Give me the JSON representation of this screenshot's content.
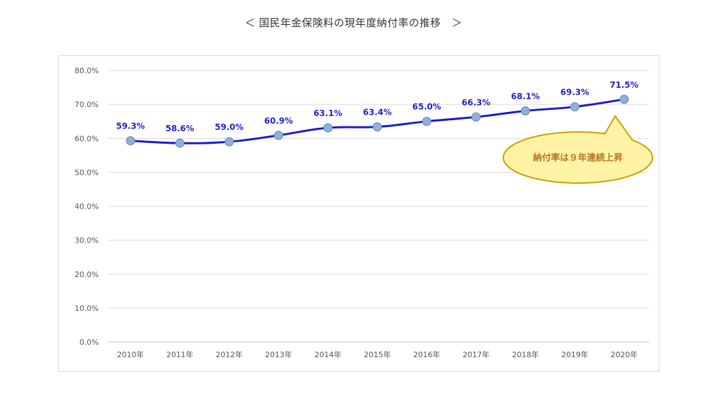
{
  "title": "＜ 国民年金保険料の現年度納付率の推移　＞",
  "callout": {
    "text": "納付率は９年連続上昇"
  },
  "colors": {
    "line": "#1a1acc",
    "marker_fill": "#8fb0d8",
    "marker_stroke": "#6a8fc0",
    "data_label": "#2424c8",
    "grid": "#d9d9d9",
    "axis": "#bfbfbf",
    "callout_fill": "#fff3a6",
    "callout_stroke": "#c9a100",
    "callout_text": "#b7791f"
  },
  "chart_data": {
    "type": "line",
    "categories": [
      "2010年",
      "2011年",
      "2012年",
      "2013年",
      "2014年",
      "2015年",
      "2016年",
      "2017年",
      "2018年",
      "2019年",
      "2020年"
    ],
    "series": [
      {
        "values": [
          59.3,
          58.6,
          59.0,
          60.9,
          63.1,
          63.4,
          65.0,
          66.3,
          68.1,
          69.3,
          71.5
        ],
        "labels": [
          "59.3%",
          "58.6%",
          "59.0%",
          "60.9%",
          "63.1%",
          "63.4%",
          "65.0%",
          "66.3%",
          "68.1%",
          "69.3%",
          "71.5%"
        ]
      }
    ],
    "ylim": [
      0,
      80
    ],
    "yticks": [
      0,
      10,
      20,
      30,
      40,
      50,
      60,
      70,
      80
    ],
    "ytick_labels": [
      "0.0%",
      "10.0%",
      "20.0%",
      "30.0%",
      "40.0%",
      "50.0%",
      "60.0%",
      "70.0%",
      "80.0%"
    ],
    "grid": true,
    "legend": "none"
  }
}
